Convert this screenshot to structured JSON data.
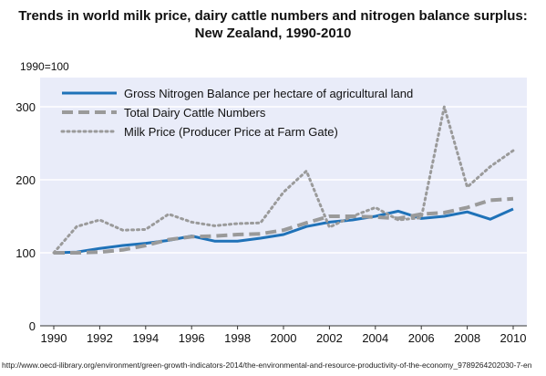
{
  "chart_data": {
    "type": "line",
    "title": "Trends in world milk price, dairy cattle numbers and nitrogen balance surplus:",
    "subtitle": "New Zealand, 1990-2010",
    "ylabel": "1990=100",
    "xlabel": "",
    "ylim": [
      0,
      340
    ],
    "yticks": [
      0,
      100,
      200,
      300
    ],
    "xlim": [
      1990,
      2010
    ],
    "xticks": [
      1990,
      1992,
      1994,
      1996,
      1998,
      2000,
      2002,
      2004,
      2006,
      2008,
      2010
    ],
    "grid": true,
    "legend_position": "top-left",
    "x": [
      1990,
      1991,
      1992,
      1993,
      1994,
      1995,
      1996,
      1997,
      1998,
      1999,
      2000,
      2001,
      2002,
      2003,
      2004,
      2005,
      2006,
      2007,
      2008,
      2009,
      2010
    ],
    "series": [
      {
        "name": "Gross Nitrogen  Balance per hectare of agricultural land",
        "color": "#1f72b8",
        "style": "solid",
        "values": [
          100,
          101,
          106,
          110,
          113,
          117,
          123,
          116,
          116,
          120,
          125,
          136,
          142,
          145,
          150,
          157,
          147,
          150,
          156,
          146,
          160
        ]
      },
      {
        "name": "Total Dairy Cattle Numbers",
        "color": "#9a9a9a",
        "style": "dashed",
        "values": [
          100,
          100,
          101,
          104,
          110,
          118,
          122,
          123,
          125,
          126,
          131,
          141,
          150,
          150,
          149,
          147,
          153,
          155,
          162,
          172,
          174
        ]
      },
      {
        "name": "Milk Price (Producer Price at Farm Gate)",
        "color": "#9a9a9a",
        "style": "dotted",
        "values": [
          100,
          136,
          145,
          131,
          132,
          153,
          142,
          137,
          140,
          141,
          183,
          212,
          135,
          150,
          162,
          145,
          148,
          300,
          190,
          218,
          240
        ]
      }
    ]
  },
  "source": "http://www.oecd-ilibrary.org/environment/green-growth-indicators-2014/the-environmental-and-resource-productivity-of-the-economy_9789264202030-7-en"
}
